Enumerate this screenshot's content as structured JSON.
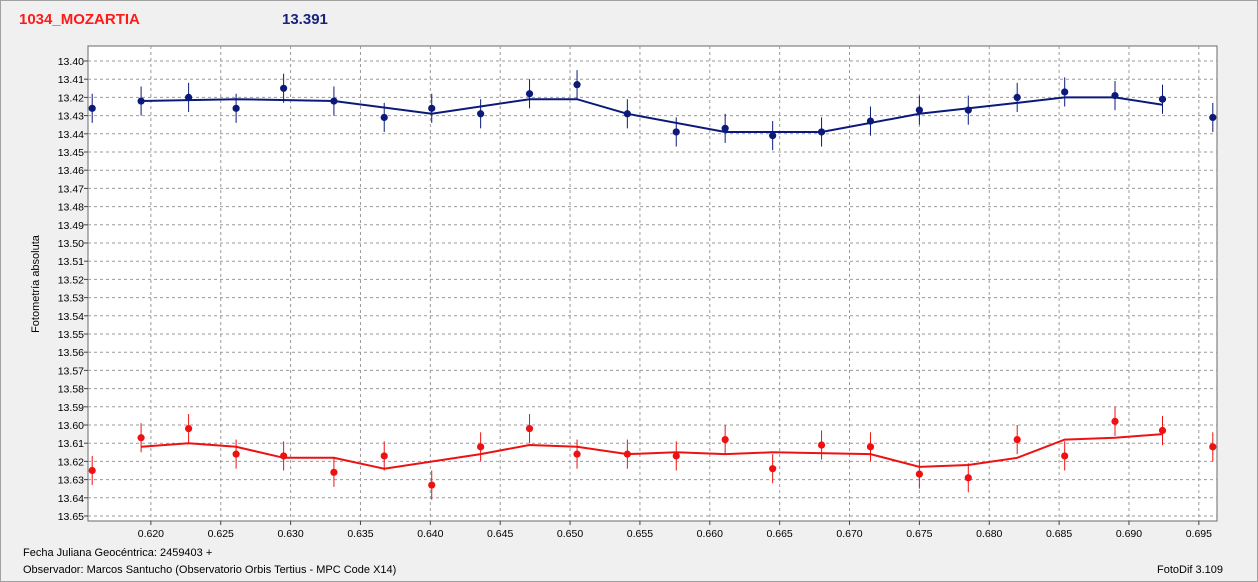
{
  "header": {
    "object_name": "1034_MOZARTIA",
    "reference_mag": "13.391"
  },
  "footer": {
    "date_label": "Fecha Juliana Geocéntrica: 2459403 +",
    "observer": "Observador: Marcos Santucho (Observatorio Orbis Tertius - MPC Code X14)",
    "software": "FotoDif 3.109"
  },
  "colors": {
    "series_blue": "#0b1a7a",
    "series_red": "#ee1111",
    "title_red": "#ff1a1a",
    "grid": "#9a9a9a"
  },
  "chart_data": {
    "type": "scatter",
    "title": "",
    "xlabel": "",
    "ylabel": "Fotometría absoluta",
    "xlim": [
      0.6155,
      0.6963
    ],
    "ylim": [
      13.4,
      13.65
    ],
    "y_inverted": true,
    "grid": true,
    "x_ticks": [
      "0.620",
      "0.625",
      "0.630",
      "0.635",
      "0.640",
      "0.645",
      "0.650",
      "0.655",
      "0.660",
      "0.665",
      "0.670",
      "0.675",
      "0.680",
      "0.685",
      "0.690",
      "0.695"
    ],
    "y_ticks": [
      "13.40",
      "13.41",
      "13.42",
      "13.43",
      "13.44",
      "13.45",
      "13.46",
      "13.47",
      "13.48",
      "13.49",
      "13.50",
      "13.51",
      "13.52",
      "13.53",
      "13.54",
      "13.55",
      "13.56",
      "13.57",
      "13.58",
      "13.59",
      "13.60",
      "13.61",
      "13.62",
      "13.63",
      "13.64",
      "13.65"
    ],
    "series": [
      {
        "color": "#0b1a7a",
        "points": [
          {
            "x": 0.6158,
            "y": 13.426
          },
          {
            "x": 0.6193,
            "y": 13.422
          },
          {
            "x": 0.6227,
            "y": 13.42
          },
          {
            "x": 0.6261,
            "y": 13.426
          },
          {
            "x": 0.6295,
            "y": 13.415
          },
          {
            "x": 0.6331,
            "y": 13.422
          },
          {
            "x": 0.6367,
            "y": 13.431
          },
          {
            "x": 0.6401,
            "y": 13.426
          },
          {
            "x": 0.6436,
            "y": 13.429
          },
          {
            "x": 0.6471,
            "y": 13.418
          },
          {
            "x": 0.6505,
            "y": 13.413
          },
          {
            "x": 0.6541,
            "y": 13.429
          },
          {
            "x": 0.6576,
            "y": 13.439
          },
          {
            "x": 0.6611,
            "y": 13.437
          },
          {
            "x": 0.6645,
            "y": 13.441
          },
          {
            "x": 0.668,
            "y": 13.439
          },
          {
            "x": 0.6715,
            "y": 13.433
          },
          {
            "x": 0.675,
            "y": 13.427
          },
          {
            "x": 0.6785,
            "y": 13.427
          },
          {
            "x": 0.682,
            "y": 13.42
          },
          {
            "x": 0.6854,
            "y": 13.417
          },
          {
            "x": 0.689,
            "y": 13.419
          },
          {
            "x": 0.6924,
            "y": 13.421
          },
          {
            "x": 0.696,
            "y": 13.431
          }
        ],
        "error": 0.008,
        "fit": [
          {
            "x": 0.6193,
            "y": 13.422
          },
          {
            "x": 0.6261,
            "y": 13.421
          },
          {
            "x": 0.6331,
            "y": 13.422
          },
          {
            "x": 0.6401,
            "y": 13.429
          },
          {
            "x": 0.6471,
            "y": 13.421
          },
          {
            "x": 0.6505,
            "y": 13.421
          },
          {
            "x": 0.6541,
            "y": 13.429
          },
          {
            "x": 0.6611,
            "y": 13.439
          },
          {
            "x": 0.668,
            "y": 13.439
          },
          {
            "x": 0.675,
            "y": 13.429
          },
          {
            "x": 0.682,
            "y": 13.423
          },
          {
            "x": 0.6854,
            "y": 13.42
          },
          {
            "x": 0.689,
            "y": 13.42
          },
          {
            "x": 0.6924,
            "y": 13.424
          }
        ]
      },
      {
        "color": "#ee1111",
        "points": [
          {
            "x": 0.6158,
            "y": 13.625
          },
          {
            "x": 0.6193,
            "y": 13.607
          },
          {
            "x": 0.6227,
            "y": 13.602
          },
          {
            "x": 0.6261,
            "y": 13.616
          },
          {
            "x": 0.6295,
            "y": 13.617
          },
          {
            "x": 0.6331,
            "y": 13.626
          },
          {
            "x": 0.6367,
            "y": 13.617
          },
          {
            "x": 0.6401,
            "y": 13.633
          },
          {
            "x": 0.6436,
            "y": 13.612
          },
          {
            "x": 0.6471,
            "y": 13.602
          },
          {
            "x": 0.6505,
            "y": 13.616
          },
          {
            "x": 0.6541,
            "y": 13.616
          },
          {
            "x": 0.6576,
            "y": 13.617
          },
          {
            "x": 0.6611,
            "y": 13.608
          },
          {
            "x": 0.6645,
            "y": 13.624
          },
          {
            "x": 0.668,
            "y": 13.611
          },
          {
            "x": 0.6715,
            "y": 13.612
          },
          {
            "x": 0.675,
            "y": 13.627
          },
          {
            "x": 0.6785,
            "y": 13.629
          },
          {
            "x": 0.682,
            "y": 13.608
          },
          {
            "x": 0.6854,
            "y": 13.617
          },
          {
            "x": 0.689,
            "y": 13.598
          },
          {
            "x": 0.6924,
            "y": 13.603
          },
          {
            "x": 0.696,
            "y": 13.612
          }
        ],
        "error": 0.008,
        "fit": [
          {
            "x": 0.6193,
            "y": 13.612
          },
          {
            "x": 0.6227,
            "y": 13.61
          },
          {
            "x": 0.6261,
            "y": 13.612
          },
          {
            "x": 0.6295,
            "y": 13.618
          },
          {
            "x": 0.6331,
            "y": 13.618
          },
          {
            "x": 0.6367,
            "y": 13.624
          },
          {
            "x": 0.6436,
            "y": 13.616
          },
          {
            "x": 0.6471,
            "y": 13.611
          },
          {
            "x": 0.6505,
            "y": 13.612
          },
          {
            "x": 0.6541,
            "y": 13.616
          },
          {
            "x": 0.6576,
            "y": 13.615
          },
          {
            "x": 0.6611,
            "y": 13.616
          },
          {
            "x": 0.6645,
            "y": 13.615
          },
          {
            "x": 0.6715,
            "y": 13.616
          },
          {
            "x": 0.675,
            "y": 13.623
          },
          {
            "x": 0.6785,
            "y": 13.622
          },
          {
            "x": 0.682,
            "y": 13.618
          },
          {
            "x": 0.6854,
            "y": 13.608
          },
          {
            "x": 0.689,
            "y": 13.607
          },
          {
            "x": 0.6924,
            "y": 13.605
          }
        ]
      }
    ]
  }
}
